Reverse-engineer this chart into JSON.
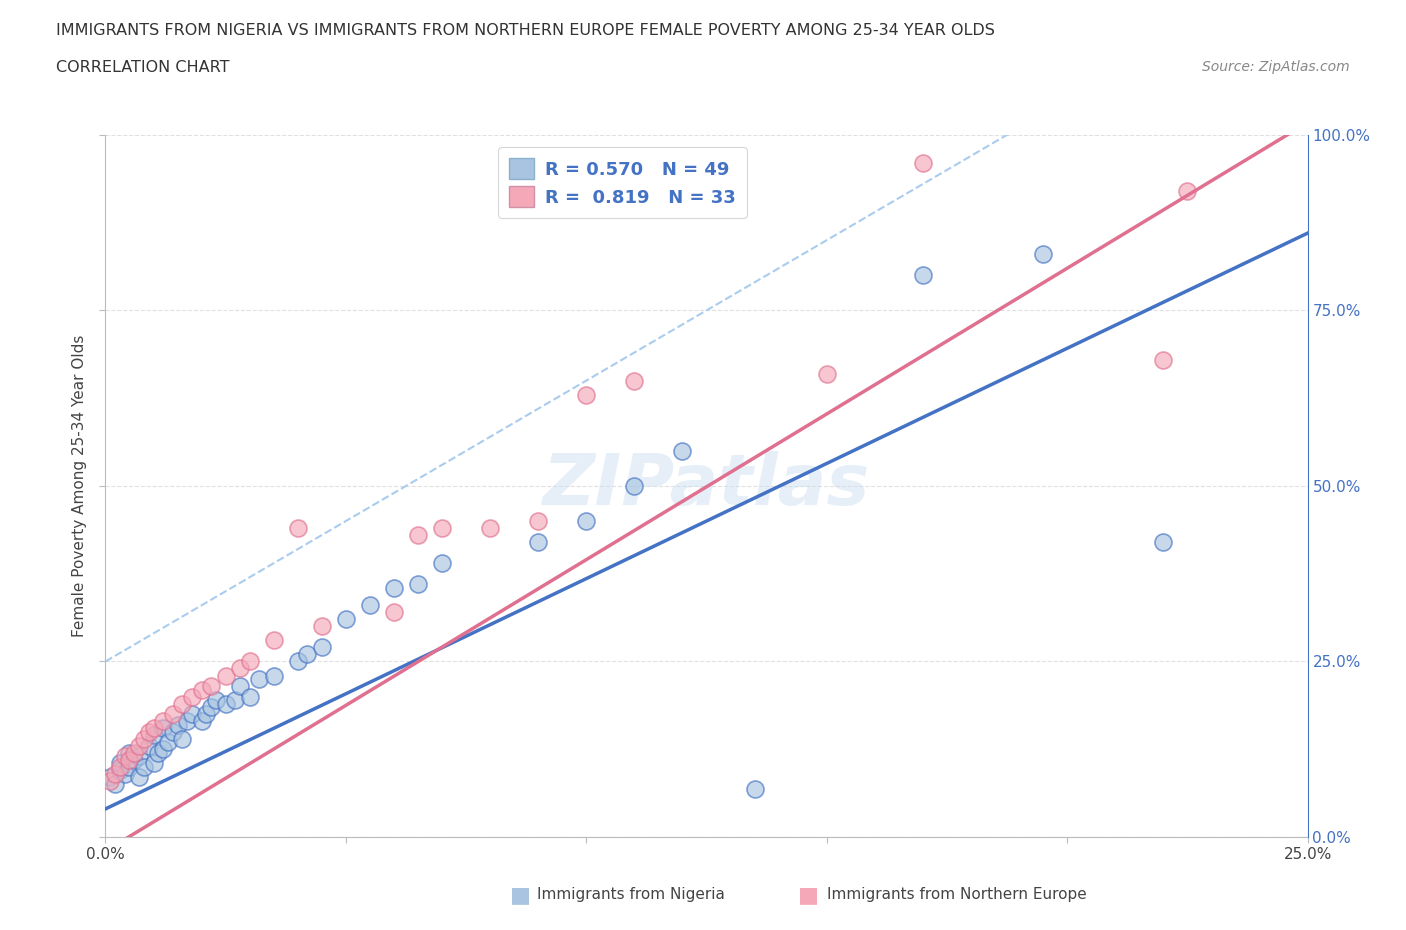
{
  "title": "IMMIGRANTS FROM NIGERIA VS IMMIGRANTS FROM NORTHERN EUROPE FEMALE POVERTY AMONG 25-34 YEAR OLDS",
  "subtitle": "CORRELATION CHART",
  "source": "Source: ZipAtlas.com",
  "ylabel": "Female Poverty Among 25-34 Year Olds",
  "xlim": [
    0,
    0.25
  ],
  "ylim": [
    0,
    1.0
  ],
  "nigeria_color": "#a8c4e0",
  "northern_europe_color": "#f4a8b8",
  "nigeria_line_color": "#4472c4",
  "northern_europe_line_color": "#e07090",
  "nigeria_R": 0.57,
  "nigeria_N": 49,
  "northern_europe_R": 0.819,
  "northern_europe_N": 33,
  "watermark": "ZIPatlas",
  "nigeria_scatter_x": [
    0.001,
    0.002,
    0.003,
    0.003,
    0.004,
    0.005,
    0.005,
    0.006,
    0.007,
    0.007,
    0.008,
    0.009,
    0.01,
    0.01,
    0.011,
    0.012,
    0.012,
    0.013,
    0.014,
    0.015,
    0.016,
    0.017,
    0.018,
    0.02,
    0.021,
    0.022,
    0.023,
    0.025,
    0.027,
    0.028,
    0.03,
    0.032,
    0.035,
    0.04,
    0.042,
    0.045,
    0.05,
    0.055,
    0.06,
    0.065,
    0.07,
    0.09,
    0.1,
    0.11,
    0.12,
    0.135,
    0.17,
    0.195,
    0.22
  ],
  "nigeria_scatter_y": [
    0.085,
    0.075,
    0.095,
    0.105,
    0.09,
    0.1,
    0.12,
    0.11,
    0.085,
    0.115,
    0.1,
    0.13,
    0.105,
    0.145,
    0.12,
    0.125,
    0.155,
    0.135,
    0.15,
    0.16,
    0.14,
    0.165,
    0.175,
    0.165,
    0.175,
    0.185,
    0.195,
    0.19,
    0.195,
    0.215,
    0.2,
    0.225,
    0.23,
    0.25,
    0.26,
    0.27,
    0.31,
    0.33,
    0.355,
    0.36,
    0.39,
    0.42,
    0.45,
    0.5,
    0.55,
    0.068,
    0.8,
    0.83,
    0.42
  ],
  "northern_europe_scatter_x": [
    0.001,
    0.002,
    0.003,
    0.004,
    0.005,
    0.006,
    0.007,
    0.008,
    0.009,
    0.01,
    0.012,
    0.014,
    0.016,
    0.018,
    0.02,
    0.022,
    0.025,
    0.028,
    0.03,
    0.035,
    0.04,
    0.045,
    0.06,
    0.065,
    0.07,
    0.08,
    0.09,
    0.1,
    0.11,
    0.15,
    0.17,
    0.22,
    0.225
  ],
  "northern_europe_scatter_y": [
    0.08,
    0.09,
    0.1,
    0.115,
    0.11,
    0.12,
    0.13,
    0.14,
    0.15,
    0.155,
    0.165,
    0.175,
    0.19,
    0.2,
    0.21,
    0.215,
    0.23,
    0.24,
    0.25,
    0.28,
    0.44,
    0.3,
    0.32,
    0.43,
    0.44,
    0.44,
    0.45,
    0.63,
    0.65,
    0.66,
    0.96,
    0.68,
    0.92
  ],
  "background_color": "#ffffff",
  "grid_color": "#dddddd",
  "nigeria_line_slope": 3.28,
  "nigeria_line_intercept": 0.04,
  "northern_europe_line_slope": 4.15,
  "northern_europe_line_intercept": -0.02
}
